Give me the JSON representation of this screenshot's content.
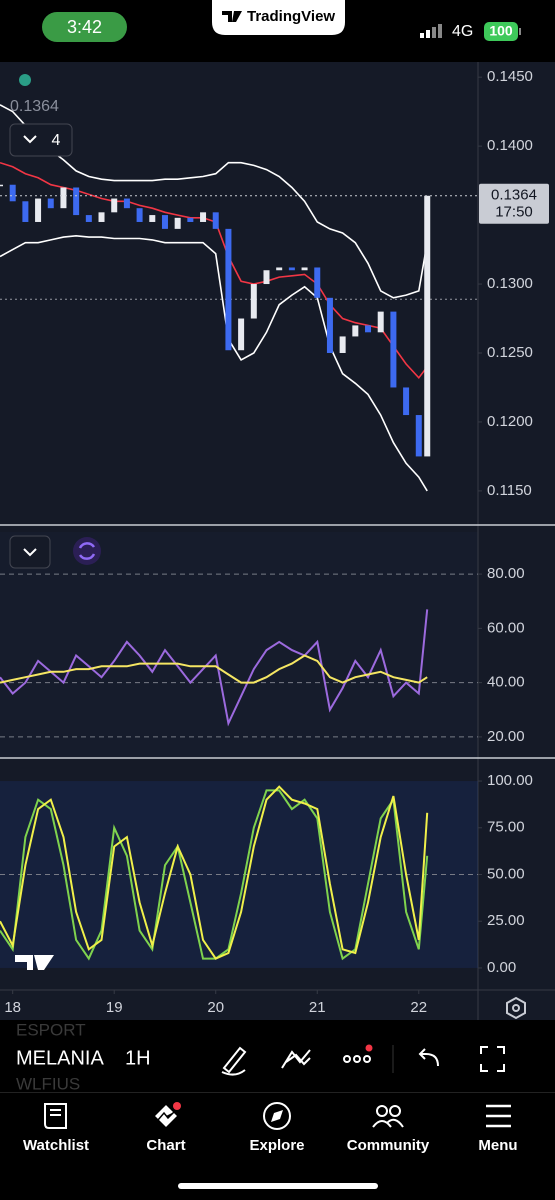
{
  "status_bar": {
    "time": "3:42",
    "network": "4G",
    "battery": "100"
  },
  "header": {
    "brand": "TradingView"
  },
  "chart_data": [
    {
      "type": "candlestick",
      "x": [
        -3,
        0,
        3,
        6,
        9,
        12,
        15,
        18,
        21,
        24,
        27,
        30,
        33,
        36,
        39,
        42,
        45,
        48,
        51,
        54,
        57,
        60,
        63,
        66,
        69,
        72,
        75,
        78,
        81,
        84,
        87,
        90,
        93,
        96,
        98
      ],
      "close": [
        0.1372,
        0.136,
        0.1345,
        0.1362,
        0.1355,
        0.137,
        0.135,
        0.1345,
        0.1352,
        0.1362,
        0.1355,
        0.1345,
        0.135,
        0.134,
        0.1348,
        0.1345,
        0.1352,
        0.134,
        0.1252,
        0.1275,
        0.13,
        0.131,
        0.1312,
        0.131,
        0.1312,
        0.129,
        0.125,
        0.1262,
        0.127,
        0.1265,
        0.128,
        0.1225,
        0.1205,
        0.1175,
        0.1364
      ],
      "up_color": "#e8eaf0",
      "down_color": "#3d6af0",
      "overlays": [
        {
          "color": "#f23645",
          "values": [
            0.1388,
            0.1385,
            0.138,
            0.1377,
            0.1372,
            0.137,
            0.1368,
            0.1365,
            0.1362,
            0.136,
            0.136,
            0.1357,
            0.1355,
            0.1352,
            0.135,
            0.1348,
            0.1348,
            0.1345,
            0.132,
            0.1302,
            0.13,
            0.1302,
            0.1305,
            0.1306,
            0.1307,
            0.13,
            0.1285,
            0.1275,
            0.1272,
            0.127,
            0.1268,
            0.1255,
            0.1242,
            0.1232,
            0.124
          ]
        },
        {
          "color": "#ffffff",
          "values": [
            0.143,
            0.1425,
            0.1415,
            0.1405,
            0.1397,
            0.139,
            0.1382,
            0.1378,
            0.1376,
            0.1375,
            0.1375,
            0.1375,
            0.1375,
            0.1376,
            0.1376,
            0.1377,
            0.1378,
            0.138,
            0.1388,
            0.1388,
            0.1386,
            0.1383,
            0.1378,
            0.137,
            0.136,
            0.1345,
            0.134,
            0.1337,
            0.133,
            0.1315,
            0.1295,
            0.129,
            0.1292,
            0.1295,
            0.133
          ]
        },
        {
          "color": "#ffffff",
          "values": [
            0.132,
            0.1325,
            0.133,
            0.133,
            0.1332,
            0.1334,
            0.1335,
            0.1334,
            0.1334,
            0.1333,
            0.1333,
            0.1333,
            0.1332,
            0.133,
            0.133,
            0.133,
            0.133,
            0.1322,
            0.126,
            0.1245,
            0.125,
            0.1265,
            0.1285,
            0.1292,
            0.1298,
            0.129,
            0.1255,
            0.1235,
            0.1228,
            0.122,
            0.1205,
            0.1185,
            0.117,
            0.116,
            0.115
          ]
        }
      ],
      "xlim": [
        -3,
        110
      ],
      "ylim": [
        0.1126,
        0.1461
      ],
      "yticks": [
        {
          "value": 0.145,
          "label": "0.1450"
        },
        {
          "value": 0.14,
          "label": "0.1400"
        },
        {
          "value": 0.13,
          "label": "0.1300"
        },
        {
          "value": 0.125,
          "label": "0.1250"
        },
        {
          "value": 0.12,
          "label": "0.1200"
        },
        {
          "value": 0.115,
          "label": "0.1150"
        }
      ],
      "xticks": [
        {
          "value": 0,
          "label": "18"
        },
        {
          "value": 24,
          "label": "19"
        },
        {
          "value": 48,
          "label": "20"
        },
        {
          "value": 72,
          "label": "21"
        },
        {
          "value": 96,
          "label": "22"
        }
      ],
      "last_price": {
        "value": 0.1364,
        "label": "0.1364"
      },
      "countdown": "17:50",
      "hlines": [
        0.1289
      ],
      "hidden_indicators": 4
    },
    {
      "type": "line",
      "x": [
        -3,
        0,
        3,
        6,
        9,
        12,
        15,
        18,
        21,
        24,
        27,
        30,
        33,
        36,
        39,
        42,
        45,
        48,
        51,
        54,
        57,
        60,
        63,
        66,
        69,
        72,
        75,
        78,
        81,
        84,
        87,
        90,
        93,
        96,
        98
      ],
      "series": [
        {
          "color": "#9c6ade",
          "values": [
            42,
            36,
            40,
            48,
            44,
            40,
            50,
            46,
            42,
            48,
            55,
            50,
            44,
            52,
            46,
            40,
            45,
            50,
            25,
            35,
            45,
            52,
            55,
            52,
            50,
            55,
            30,
            38,
            48,
            42,
            52,
            35,
            40,
            36,
            67
          ]
        },
        {
          "color": "#f5e663",
          "values": [
            40,
            41,
            42,
            43,
            44,
            44,
            45,
            45,
            46,
            46,
            46,
            47,
            47,
            47,
            47,
            46,
            46,
            46,
            43,
            40,
            40,
            42,
            45,
            47,
            50,
            48,
            42,
            40,
            42,
            43,
            44,
            42,
            41,
            40,
            42
          ]
        }
      ],
      "xlim": [
        -3,
        110
      ],
      "ylim": [
        12.6,
        95.5
      ],
      "yticks": [
        {
          "value": 80,
          "label": "80.00"
        },
        {
          "value": 60,
          "label": "60.00"
        },
        {
          "value": 40,
          "label": "40.00"
        },
        {
          "value": 20,
          "label": "20.00"
        }
      ],
      "levels": [
        80,
        40,
        20
      ]
    },
    {
      "type": "line",
      "x": [
        -3,
        0,
        3,
        6,
        9,
        12,
        15,
        18,
        21,
        24,
        27,
        30,
        33,
        36,
        39,
        42,
        45,
        48,
        51,
        54,
        57,
        60,
        63,
        66,
        69,
        72,
        75,
        78,
        81,
        84,
        87,
        90,
        93,
        96,
        98
      ],
      "series": [
        {
          "color": "#7fd34e",
          "values": [
            20,
            10,
            70,
            90,
            85,
            55,
            15,
            5,
            20,
            75,
            60,
            20,
            10,
            55,
            65,
            35,
            5,
            5,
            10,
            40,
            75,
            95,
            95,
            85,
            90,
            80,
            30,
            5,
            10,
            45,
            80,
            90,
            30,
            10,
            60
          ]
        },
        {
          "color": "#f0f04a",
          "values": [
            25,
            12,
            55,
            85,
            90,
            70,
            30,
            10,
            15,
            65,
            70,
            35,
            12,
            40,
            65,
            50,
            15,
            5,
            8,
            30,
            65,
            90,
            97,
            90,
            88,
            85,
            45,
            10,
            8,
            35,
            70,
            92,
            50,
            15,
            83
          ]
        }
      ],
      "xlim": [
        -3,
        110
      ],
      "ylim": [
        -11.8,
        111.8
      ],
      "yticks": [
        {
          "value": 100,
          "label": "100.00"
        },
        {
          "value": 75,
          "label": "75.00"
        },
        {
          "value": 50,
          "label": "50.00"
        },
        {
          "value": 25,
          "label": "25.00"
        },
        {
          "value": 0,
          "label": "0.00"
        }
      ],
      "levels": [
        50
      ],
      "band": [
        0,
        100
      ]
    }
  ],
  "toolbar": {
    "symbol": "MELANIA",
    "interval": "1H",
    "watchlist_peek": [
      "ESPORT",
      "WLFIUS"
    ]
  },
  "nav": [
    "Watchlist",
    "Chart",
    "Explore",
    "Community",
    "Menu"
  ]
}
